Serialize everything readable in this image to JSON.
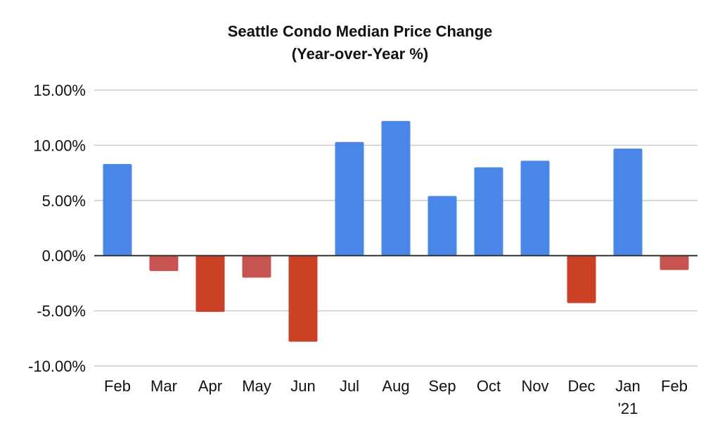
{
  "chart_data": {
    "type": "bar",
    "title": "Seattle Condo Median Price Change",
    "subtitle": "(Year-over-Year %)",
    "xlabel": "",
    "ylabel": "",
    "categories": [
      "Feb",
      "Mar",
      "Apr",
      "May",
      "Jun",
      "Jul",
      "Aug",
      "Sep",
      "Oct",
      "Nov",
      "Dec",
      "Jan\n'21",
      "Feb"
    ],
    "values": [
      8.3,
      -1.4,
      -5.1,
      -2.0,
      -7.8,
      10.3,
      12.2,
      5.4,
      8.0,
      8.6,
      -4.3,
      9.7,
      -1.3
    ],
    "ylim": [
      -10,
      15
    ],
    "yticks": [
      15,
      10,
      5,
      0,
      -5,
      -10
    ],
    "ytick_labels": [
      "15.00%",
      "10.00%",
      "5.00%",
      "0.00%",
      "-5.00%",
      "-10.00%"
    ],
    "grid": true,
    "legend": "none",
    "colors": {
      "positive": "#4a86e8",
      "negative_large": "#cc4125",
      "negative_small": "#c75450",
      "gridline": "#cccccc",
      "zero_line": "#333333"
    }
  }
}
